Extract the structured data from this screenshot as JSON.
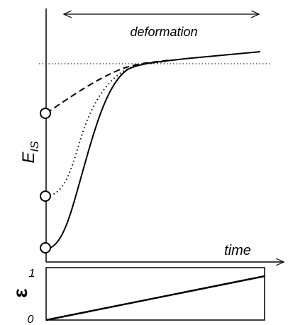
{
  "header": {
    "span_label": "deformation"
  },
  "energy_axis": {
    "symbol": "E",
    "subscript": "IS"
  },
  "time_axis": {
    "label": "time"
  },
  "strain_panel": {
    "symbol": "ε",
    "ticks": [
      0,
      1
    ]
  }
}
